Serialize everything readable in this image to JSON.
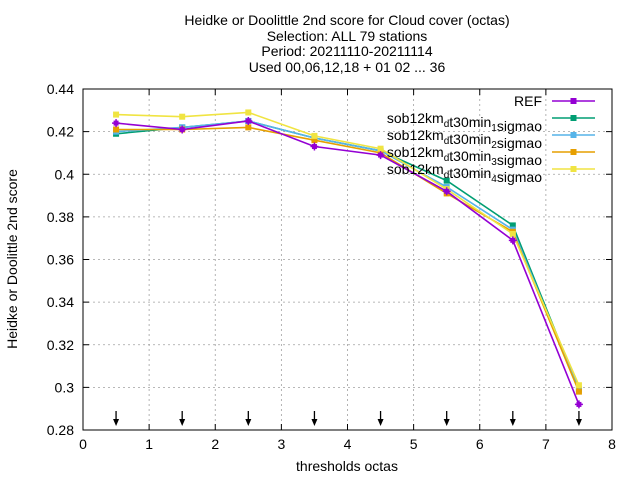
{
  "chart_data": {
    "type": "line",
    "title_lines": [
      "Heidke or Doolittle 2nd score  for Cloud cover (octas)",
      "Selection: ALL     79 stations",
      "Period: 20211110-20211114",
      "Used 00,06,12,18 + 01 02 ... 36"
    ],
    "xlabel": "thresholds octas",
    "ylabel": "Heidke or Doolittle 2nd score",
    "xlim": [
      0,
      8
    ],
    "ylim": [
      0.28,
      0.44
    ],
    "x_ticks": [
      0,
      1,
      2,
      3,
      4,
      5,
      6,
      7,
      8
    ],
    "x_tick_labels": [
      "0",
      "1",
      "2",
      "3",
      "4",
      "5",
      "6",
      "7",
      "8"
    ],
    "y_ticks": [
      0.28,
      0.3,
      0.32,
      0.34,
      0.36,
      0.38,
      0.4,
      0.42,
      0.44
    ],
    "y_tick_labels": [
      "0.28",
      "0.3",
      "0.32",
      "0.34",
      "0.36",
      "0.38",
      "0.4",
      "0.42",
      "0.44"
    ],
    "grid": true,
    "legend_position": "top-right",
    "x": [
      0.5,
      1.5,
      2.5,
      3.5,
      4.5,
      5.5,
      6.5,
      7.5
    ],
    "arrow_markers_x": [
      0.5,
      1.5,
      2.5,
      3.5,
      4.5,
      5.5,
      6.5,
      7.5
    ],
    "series": [
      {
        "name_parts": [
          {
            "t": "REF",
            "sub": ""
          }
        ],
        "color": "#9400d3",
        "values": [
          0.424,
          0.421,
          0.425,
          0.413,
          0.409,
          0.392,
          0.369,
          0.292
        ]
      },
      {
        "name_parts": [
          {
            "t": "sob12km",
            "sub": "d"
          },
          {
            "t": "t30min",
            "sub": "1"
          },
          {
            "t": "sigmao",
            "sub": ""
          }
        ],
        "color": "#009e73",
        "values": [
          0.419,
          0.422,
          0.425,
          0.417,
          0.411,
          0.397,
          0.376,
          0.299
        ]
      },
      {
        "name_parts": [
          {
            "t": "sob12km",
            "sub": "d"
          },
          {
            "t": "t30min",
            "sub": "2"
          },
          {
            "t": "sigmao",
            "sub": ""
          }
        ],
        "color": "#56b4e9",
        "values": [
          0.42,
          0.422,
          0.425,
          0.417,
          0.411,
          0.394,
          0.374,
          0.299
        ]
      },
      {
        "name_parts": [
          {
            "t": "sob12km",
            "sub": "d"
          },
          {
            "t": "t30min",
            "sub": "3"
          },
          {
            "t": "sigmao",
            "sub": ""
          }
        ],
        "color": "#e69f00",
        "values": [
          0.421,
          0.421,
          0.422,
          0.416,
          0.41,
          0.391,
          0.373,
          0.298
        ]
      },
      {
        "name_parts": [
          {
            "t": "sob12km",
            "sub": "d"
          },
          {
            "t": "t30min",
            "sub": "4"
          },
          {
            "t": "sigmao",
            "sub": ""
          }
        ],
        "color": "#f0e442",
        "values": [
          0.428,
          0.427,
          0.429,
          0.418,
          0.412,
          0.393,
          0.372,
          0.301
        ]
      }
    ]
  }
}
